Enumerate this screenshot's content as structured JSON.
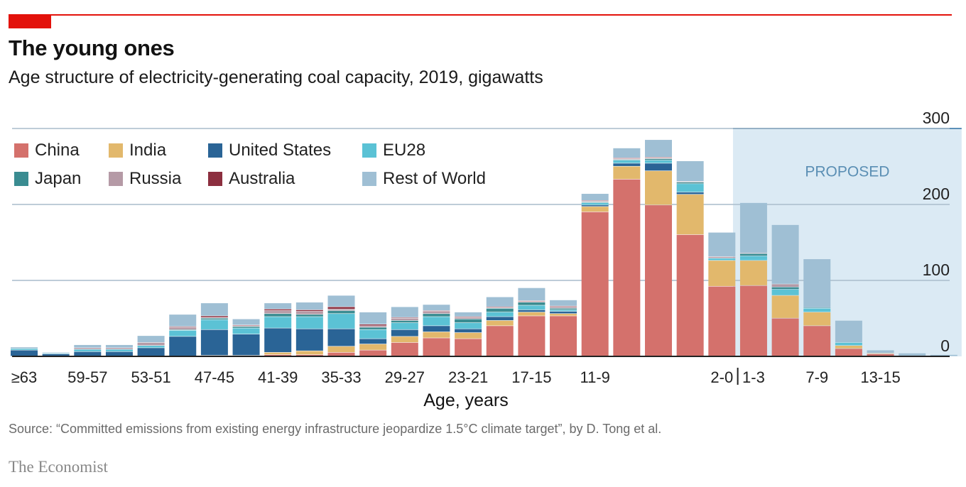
{
  "header": {
    "title": "The young ones",
    "subtitle": "Age structure of electricity-generating coal capacity, 2019, gigawatts"
  },
  "footer": {
    "source": "Source: “Committed emissions from existing energy infrastructure jeopardize 1.5°C climate target”, by D. Tong et al.",
    "brand": "The Economist"
  },
  "colors": {
    "brand_red": "#e3120b",
    "China": "#d4716c",
    "India": "#e2b86c",
    "United States": "#2a6496",
    "EU28": "#5bc2d5",
    "Japan": "#3a8c91",
    "Russia": "#b59aa6",
    "Australia": "#8c2f3f",
    "Rest of World": "#9fbfd4",
    "proposed_shade": "#dbeaf4",
    "gridline": "#a9bccb"
  },
  "legend": [
    {
      "name": "China",
      "icon": "square-swatch"
    },
    {
      "name": "India",
      "icon": "square-swatch"
    },
    {
      "name": "United States",
      "icon": "square-swatch"
    },
    {
      "name": "EU28",
      "icon": "square-swatch"
    },
    {
      "name": "Japan",
      "icon": "square-swatch"
    },
    {
      "name": "Russia",
      "icon": "square-swatch"
    },
    {
      "name": "Australia",
      "icon": "square-swatch"
    },
    {
      "name": "Rest of World",
      "icon": "square-swatch"
    }
  ],
  "chart_data": {
    "type": "bar",
    "stacked": true,
    "xlabel": "Age, years",
    "ylabel": "",
    "ylim": [
      0,
      300
    ],
    "yticks": [
      0,
      100,
      200,
      300
    ],
    "y_axis_side": "right",
    "grid": true,
    "legend_position": "top-left",
    "tick_labels": [
      "≥63",
      "59-57",
      "53-51",
      "47-45",
      "41-39",
      "35-33",
      "29-27",
      "23-21",
      "17-15",
      "11-9",
      "2-0",
      "1-3",
      "7-9",
      "13-15"
    ],
    "proposed_label": "PROPOSED",
    "categories": [
      "≥63",
      "",
      "59-57",
      "",
      "53-51",
      "",
      "47-45",
      "",
      "41-39",
      "",
      "35-33",
      "",
      "29-27",
      "",
      "23-21",
      "",
      "17-15",
      "",
      "11-9",
      "",
      "",
      "",
      "2-0",
      "1-3",
      "",
      "7-9",
      "",
      "13-15",
      "",
      ""
    ],
    "proposed_start_index": 23,
    "series": [
      {
        "name": "China",
        "values": [
          0,
          0,
          0,
          0,
          0,
          0,
          0,
          0,
          2,
          2,
          5,
          8,
          18,
          24,
          23,
          40,
          53,
          53,
          190,
          233,
          199,
          160,
          92,
          93,
          50,
          40,
          10,
          3,
          0,
          0
        ]
      },
      {
        "name": "India",
        "values": [
          0,
          0,
          0,
          0,
          0,
          0,
          1,
          1,
          3,
          5,
          8,
          8,
          8,
          8,
          8,
          7,
          5,
          3,
          7,
          17,
          45,
          53,
          34,
          33,
          30,
          18,
          4,
          1,
          0,
          0
        ]
      },
      {
        "name": "United States",
        "values": [
          8,
          3,
          6,
          6,
          11,
          26,
          34,
          28,
          32,
          29,
          23,
          7,
          9,
          8,
          5,
          5,
          3,
          3,
          2,
          4,
          10,
          3,
          0,
          0,
          0,
          0,
          0,
          0,
          0,
          0
        ]
      },
      {
        "name": "EU28",
        "values": [
          2,
          1,
          3,
          3,
          3,
          8,
          13,
          8,
          15,
          16,
          20,
          12,
          9,
          12,
          8,
          6,
          6,
          2,
          3,
          4,
          4,
          11,
          3,
          6,
          8,
          5,
          4,
          0,
          0,
          0
        ]
      },
      {
        "name": "Japan",
        "values": [
          0,
          0,
          0,
          0,
          0,
          1,
          2,
          2,
          4,
          3,
          4,
          3,
          3,
          4,
          5,
          5,
          4,
          2,
          1,
          1,
          2,
          2,
          0,
          3,
          3,
          1,
          0,
          0,
          0,
          0
        ]
      },
      {
        "name": "Russia",
        "values": [
          0,
          0,
          2,
          2,
          4,
          3,
          1,
          1,
          4,
          4,
          2,
          2,
          3,
          3,
          2,
          1,
          1,
          2,
          1,
          1,
          1,
          1,
          2,
          1,
          4,
          0,
          0,
          0,
          0,
          0
        ]
      },
      {
        "name": "Australia",
        "values": [
          0,
          0,
          0,
          0,
          0,
          1,
          2,
          1,
          2,
          2,
          3,
          2,
          1,
          1,
          1,
          1,
          1,
          1,
          1,
          1,
          1,
          0,
          0,
          0,
          0,
          0,
          0,
          0,
          0,
          0
        ]
      },
      {
        "name": "Rest of World",
        "values": [
          2,
          1,
          4,
          4,
          9,
          16,
          17,
          8,
          8,
          10,
          15,
          16,
          14,
          8,
          6,
          13,
          17,
          8,
          9,
          13,
          23,
          27,
          32,
          66,
          78,
          64,
          29,
          4,
          4,
          2
        ]
      }
    ]
  }
}
